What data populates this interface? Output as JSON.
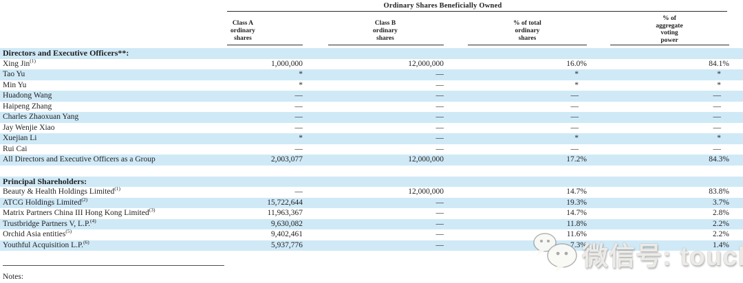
{
  "colors": {
    "row_highlight": "#cfe9f7",
    "rule": "#2b2b2b",
    "text": "#1f1f1f",
    "background": "#ffffff"
  },
  "table": {
    "group_header": "Ordinary Shares Beneficially Owned",
    "columns": [
      {
        "id": "class_a",
        "label": "Class A\nordinary\nshares"
      },
      {
        "id": "class_b",
        "label": "Class B\nordinary\nshares"
      },
      {
        "id": "pct_total",
        "label": "% of total\nordinary\nshares"
      },
      {
        "id": "pct_voting",
        "label": "% of\naggregate\nvoting\npower"
      }
    ],
    "sections": [
      {
        "header": "Directors and Executive Officers**:",
        "rows": [
          {
            "name": "Xing Jin",
            "sup": "(1)",
            "class_a": "1,000,000",
            "class_b": "12,000,000",
            "pct_total": "16.0%",
            "pct_voting": "84.1%"
          },
          {
            "name": "Tao Yu",
            "sup": "",
            "class_a": "*",
            "class_b": "—",
            "pct_total": "*",
            "pct_voting": "*"
          },
          {
            "name": "Min Yu",
            "sup": "",
            "class_a": "*",
            "class_b": "—",
            "pct_total": "*",
            "pct_voting": "*"
          },
          {
            "name": "Huadong Wang",
            "sup": "",
            "class_a": "—",
            "class_b": "—",
            "pct_total": "—",
            "pct_voting": "—"
          },
          {
            "name": "Haipeng Zhang",
            "sup": "",
            "class_a": "—",
            "class_b": "—",
            "pct_total": "—",
            "pct_voting": "—"
          },
          {
            "name": "Charles Zhaoxuan Yang",
            "sup": "",
            "class_a": "—",
            "class_b": "—",
            "pct_total": "—",
            "pct_voting": "—"
          },
          {
            "name": "Jay Wenjie Xiao",
            "sup": "",
            "class_a": "—",
            "class_b": "—",
            "pct_total": "—",
            "pct_voting": "—"
          },
          {
            "name": "Xuejian Li",
            "sup": "",
            "class_a": "*",
            "class_b": "—",
            "pct_total": "*",
            "pct_voting": "*"
          },
          {
            "name": "Rui Cai",
            "sup": "",
            "class_a": "—",
            "class_b": "—",
            "pct_total": "—",
            "pct_voting": "—"
          },
          {
            "name": "All Directors and Executive Officers as a Group",
            "sup": "",
            "class_a": "2,003,077",
            "class_b": "12,000,000",
            "pct_total": "17.2%",
            "pct_voting": "84.3%"
          }
        ]
      },
      {
        "header": "Principal Shareholders:",
        "rows": [
          {
            "name": "Beauty & Health Holdings Limited",
            "sup": "(1)",
            "class_a": "—",
            "class_b": "12,000,000",
            "pct_total": "14.7%",
            "pct_voting": "83.8%"
          },
          {
            "name": "ATCG Holdings Limited",
            "sup": "(2)",
            "class_a": "15,722,644",
            "class_b": "—",
            "pct_total": "19.3%",
            "pct_voting": "3.7%"
          },
          {
            "name": "Matrix Partners China III Hong Kong Limited",
            "sup": "(3)",
            "class_a": "11,963,367",
            "class_b": "—",
            "pct_total": "14.7%",
            "pct_voting": "2.8%"
          },
          {
            "name": "Trustbridge Partners V, L.P.",
            "sup": "(4)",
            "class_a": "9,630,082",
            "class_b": "—",
            "pct_total": "11.8%",
            "pct_voting": "2.2%"
          },
          {
            "name": "Orchid Asia entities",
            "sup": "(5)",
            "class_a": "9,402,461",
            "class_b": "—",
            "pct_total": "11.6%",
            "pct_voting": "2.2%"
          },
          {
            "name": "Youthful Acquisition L.P.",
            "sup": "(6)",
            "class_a": "5,937,776",
            "class_b": "—",
            "pct_total": "7.3%",
            "pct_voting": "1.4%"
          }
        ]
      }
    ]
  },
  "footer": {
    "notes_label": "Notes:"
  },
  "watermark": {
    "icon": "wechat-icon",
    "text": "微信号: touchweb"
  }
}
